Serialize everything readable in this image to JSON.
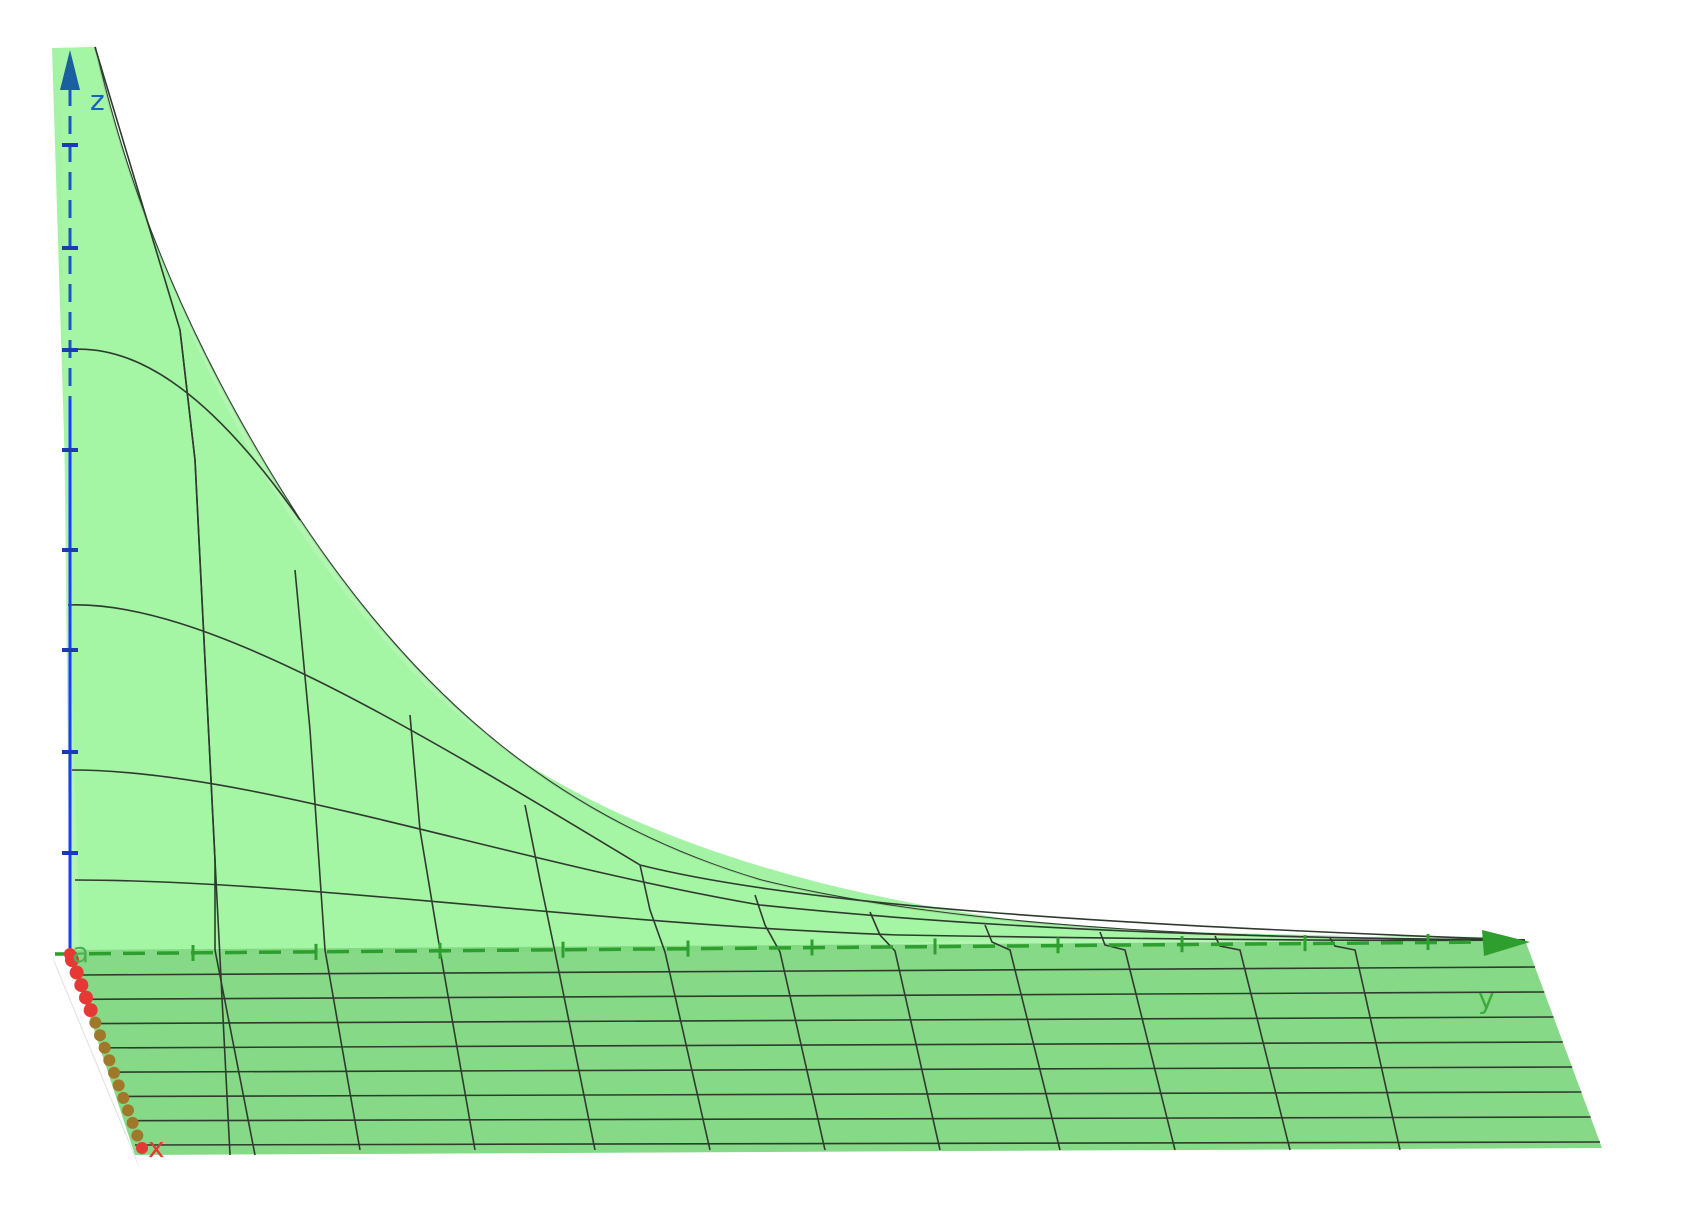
{
  "view": {
    "type": "3d-surface-plot",
    "surface_color": "#8ef08e",
    "surface_floor_color": "#6fd46f",
    "mesh_color": "#2f3b2f",
    "background": "#ffffff"
  },
  "axes": {
    "x": {
      "label": "x",
      "color": "#e53935",
      "style": "dotted-points"
    },
    "y": {
      "label": "y",
      "color": "#2e9e2e",
      "style": "dashed"
    },
    "z": {
      "label": "z",
      "color": "#1565c0",
      "style": "dashed"
    }
  },
  "point": {
    "label": "a",
    "color": "#4caf50"
  }
}
